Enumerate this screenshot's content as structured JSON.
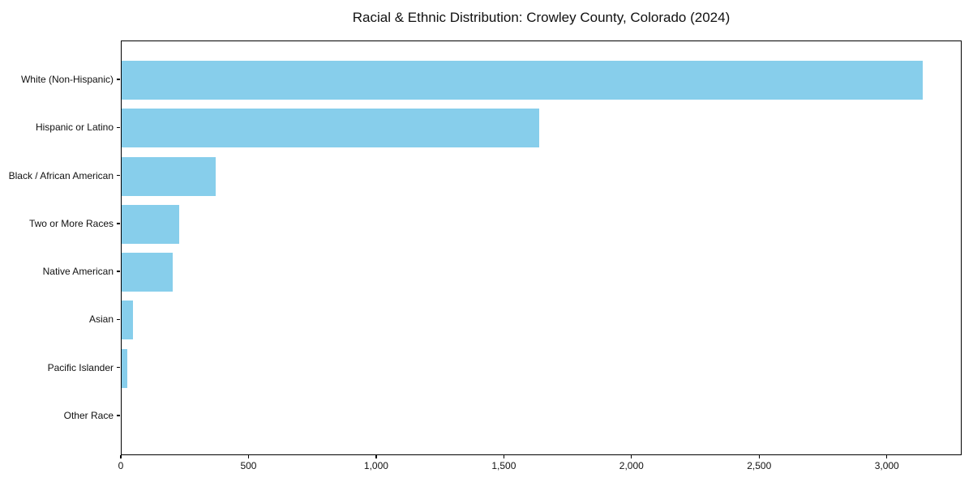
{
  "chart_data": {
    "type": "bar",
    "orientation": "horizontal",
    "title": "Racial & Ethnic Distribution: Crowley County, Colorado (2024)",
    "categories": [
      "White (Non-Hispanic)",
      "Hispanic or Latino",
      "Black / African American",
      "Two or More Races",
      "Native American",
      "Asian",
      "Pacific Islander",
      "Other Race"
    ],
    "values": [
      3136,
      1635,
      368,
      226,
      200,
      45,
      21,
      0
    ],
    "xlabel": "",
    "ylabel": "",
    "xlim": [
      0,
      3293
    ],
    "xticks": [
      0,
      500,
      1000,
      1500,
      2000,
      2500,
      3000
    ],
    "xtick_labels": [
      "0",
      "500",
      "1,000",
      "1,500",
      "2,000",
      "2,500",
      "3,000"
    ],
    "bar_color": "#87CEEB",
    "axis_color": "#000000",
    "background_color": "#ffffff",
    "grid": false,
    "legend": null
  }
}
